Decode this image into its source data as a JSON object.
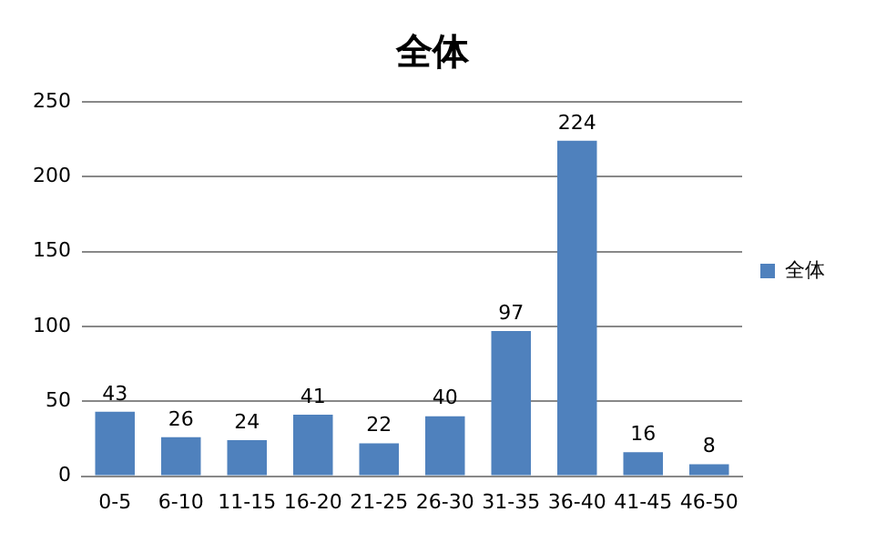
{
  "chart_data": {
    "type": "bar",
    "title": "全体",
    "categories": [
      "0-5",
      "6-10",
      "11-15",
      "16-20",
      "21-25",
      "26-30",
      "31-35",
      "36-40",
      "41-45",
      "46-50"
    ],
    "series": [
      {
        "name": "全体",
        "color": "#4f81bd",
        "values": [
          43,
          26,
          24,
          41,
          22,
          40,
          97,
          224,
          16,
          8
        ]
      }
    ],
    "ylim": [
      0,
      250
    ],
    "yticks": [
      0,
      50,
      100,
      150,
      200,
      250
    ],
    "grid": "y",
    "legend": "right",
    "data_labels": true
  }
}
